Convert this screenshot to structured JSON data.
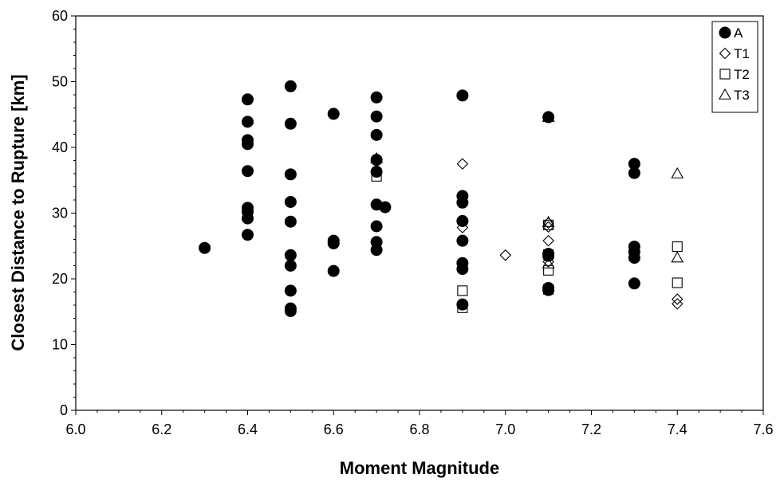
{
  "chart_data": {
    "type": "scatter",
    "xlabel": "Moment Magnitude",
    "ylabel": "Closest Distance to Rupture [km]",
    "xlim": [
      6.0,
      7.6
    ],
    "ylim": [
      0,
      60
    ],
    "xticks": [
      "6.0",
      "6.2",
      "6.4",
      "6.6",
      "6.8",
      "7.0",
      "7.2",
      "7.4",
      "7.6"
    ],
    "yticks": [
      "0",
      "10",
      "20",
      "30",
      "40",
      "50",
      "60"
    ],
    "legend_position": "top-right",
    "series": [
      {
        "name": "A",
        "marker": "filled-circle",
        "points": [
          [
            6.3,
            24.7
          ],
          [
            6.4,
            47.3
          ],
          [
            6.4,
            43.9
          ],
          [
            6.4,
            41.1
          ],
          [
            6.4,
            40.5
          ],
          [
            6.4,
            36.4
          ],
          [
            6.4,
            30.8
          ],
          [
            6.4,
            30.2
          ],
          [
            6.4,
            29.2
          ],
          [
            6.4,
            26.7
          ],
          [
            6.5,
            49.3
          ],
          [
            6.5,
            43.6
          ],
          [
            6.5,
            35.9
          ],
          [
            6.5,
            31.7
          ],
          [
            6.5,
            28.7
          ],
          [
            6.5,
            23.6
          ],
          [
            6.5,
            22.0
          ],
          [
            6.5,
            18.2
          ],
          [
            6.5,
            15.5
          ],
          [
            6.5,
            15.1
          ],
          [
            6.6,
            45.1
          ],
          [
            6.6,
            25.8
          ],
          [
            6.6,
            25.4
          ],
          [
            6.6,
            21.2
          ],
          [
            6.7,
            47.6
          ],
          [
            6.7,
            44.7
          ],
          [
            6.7,
            41.9
          ],
          [
            6.7,
            38.1
          ],
          [
            6.7,
            36.3
          ],
          [
            6.7,
            31.3
          ],
          [
            6.7,
            28.0
          ],
          [
            6.7,
            25.6
          ],
          [
            6.7,
            24.4
          ],
          [
            6.72,
            30.9
          ],
          [
            6.9,
            47.9
          ],
          [
            6.9,
            32.6
          ],
          [
            6.9,
            31.6
          ],
          [
            6.9,
            28.8
          ],
          [
            6.9,
            25.8
          ],
          [
            6.9,
            22.4
          ],
          [
            6.9,
            21.5
          ],
          [
            6.9,
            16.1
          ],
          [
            7.1,
            44.6
          ],
          [
            7.1,
            23.8
          ],
          [
            7.1,
            23.5
          ],
          [
            7.1,
            18.6
          ],
          [
            7.1,
            18.3
          ],
          [
            7.3,
            37.5
          ],
          [
            7.3,
            36.1
          ],
          [
            7.3,
            24.9
          ],
          [
            7.3,
            24.1
          ],
          [
            7.3,
            23.2
          ],
          [
            7.3,
            19.3
          ]
        ]
      },
      {
        "name": "T1",
        "marker": "open-diamond",
        "points": [
          [
            6.9,
            37.5
          ],
          [
            6.9,
            27.8
          ],
          [
            7.0,
            23.6
          ],
          [
            7.1,
            28.5
          ],
          [
            7.1,
            27.9
          ],
          [
            7.1,
            25.8
          ],
          [
            7.1,
            22.6
          ],
          [
            7.4,
            16.9
          ],
          [
            7.4,
            16.2
          ]
        ]
      },
      {
        "name": "T2",
        "marker": "open-square",
        "points": [
          [
            6.7,
            35.6
          ],
          [
            6.9,
            18.2
          ],
          [
            6.9,
            15.6
          ],
          [
            7.1,
            28.2
          ],
          [
            7.1,
            23.7
          ],
          [
            7.1,
            21.3
          ],
          [
            7.1,
            18.4
          ],
          [
            7.4,
            24.9
          ],
          [
            7.4,
            19.4
          ]
        ]
      },
      {
        "name": "T3",
        "marker": "open-triangle",
        "points": [
          [
            6.7,
            38.3
          ],
          [
            7.1,
            44.6
          ],
          [
            7.1,
            28.6
          ],
          [
            7.1,
            22.3
          ],
          [
            7.4,
            36.0
          ],
          [
            7.4,
            23.2
          ]
        ]
      }
    ]
  }
}
